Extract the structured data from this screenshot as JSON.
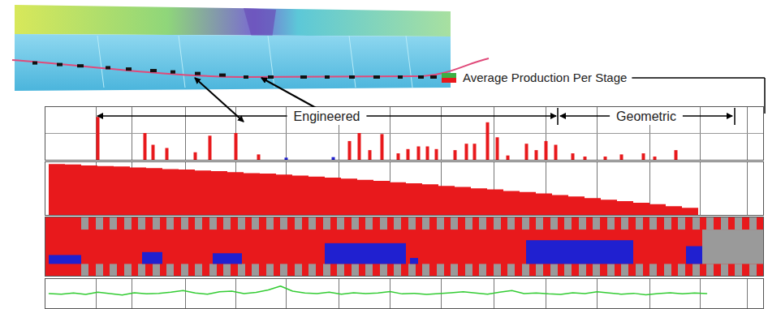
{
  "chart_data": [
    {
      "type": "bar",
      "x": [
        120,
        178,
        188,
        205,
        240,
        258,
        290,
        318,
        352,
        410,
        430,
        442,
        455,
        470,
        490,
        502,
        515,
        526,
        537,
        560,
        574,
        584,
        600,
        612,
        625,
        648,
        660,
        672,
        684,
        705,
        720,
        745,
        765,
        792,
        806,
        832
      ],
      "series": [
        {
          "name": "Average Production Per Stage",
          "values": [
            80,
            50,
            28,
            22,
            14,
            45,
            50,
            10,
            4,
            5,
            35,
            50,
            18,
            48,
            12,
            20,
            25,
            25,
            20,
            18,
            30,
            30,
            70,
            42,
            8,
            30,
            18,
            35,
            28,
            12,
            6,
            6,
            10,
            12,
            6,
            18
          ],
          "colors": [
            "#e8191c",
            "#e8191c",
            "#e8191c",
            "#e8191c",
            "#e8191c",
            "#e8191c",
            "#e8191c",
            "#e8191c",
            "#2020d0",
            "#2020d0",
            "#e8191c",
            "#e8191c",
            "#e8191c",
            "#e8191c",
            "#e8191c",
            "#e8191c",
            "#e8191c",
            "#e8191c",
            "#e8191c",
            "#e8191c",
            "#e8191c",
            "#e8191c",
            "#e8191c",
            "#e8191c",
            "#e8191c",
            "#e8191c",
            "#e8191c",
            "#e8191c",
            "#e8191c",
            "#e8191c",
            "#e8191c",
            "#e8191c",
            "#e8191c",
            "#e8191c",
            "#e8191c",
            "#e8191c"
          ]
        }
      ],
      "xlim": [
        55,
        940
      ],
      "xticks": [
        118,
        162,
        228,
        290,
        352,
        417,
        480,
        543,
        608,
        672,
        735,
        800,
        862,
        920
      ],
      "ylim": [
        0,
        100
      ],
      "yticks": [
        50
      ],
      "grid": true,
      "tick_labels": false,
      "legend": "top-right",
      "annotations": [
        {
          "text": "Engineered",
          "x1": 120,
          "x2": 685
        },
        {
          "text": "Geometric",
          "x1": 690,
          "x2": 902
        }
      ],
      "dividers": [
        687,
        905
      ]
    },
    {
      "type": "area",
      "x": [
        60,
        80,
        100,
        120,
        140,
        160,
        180,
        200,
        220,
        240,
        260,
        280,
        300,
        320,
        340,
        360,
        380,
        400,
        420,
        440,
        460,
        480,
        500,
        520,
        540,
        560,
        580,
        600,
        620,
        640,
        660,
        680,
        700,
        720,
        740,
        760,
        780,
        800,
        820,
        840,
        860
      ],
      "values": [
        100,
        99,
        97,
        96,
        95,
        93,
        92,
        90,
        89,
        87,
        86,
        84,
        82,
        81,
        79,
        77,
        75,
        73,
        71,
        69,
        67,
        64,
        62,
        60,
        57,
        55,
        52,
        50,
        47,
        45,
        42,
        39,
        36,
        33,
        30,
        27,
        24,
        21,
        17,
        14,
        10
      ],
      "color": "#e8191c",
      "xlim": [
        55,
        940
      ],
      "xticks": [
        118,
        162,
        228,
        290,
        352,
        417,
        480,
        543,
        608,
        672,
        735,
        800,
        862,
        920
      ],
      "ylim": [
        0,
        105
      ],
      "yticks": [],
      "grid": true,
      "tick_labels": false
    },
    {
      "type": "stage_log",
      "band": [
        55,
        940
      ],
      "band_color": "#e8191c",
      "stages": [
        [
          100,
          109
        ],
        [
          118,
          127
        ],
        [
          135,
          144
        ],
        [
          153,
          162
        ],
        [
          170,
          179
        ],
        [
          188,
          197
        ],
        [
          205,
          214
        ],
        [
          223,
          232
        ],
        [
          240,
          249
        ],
        [
          258,
          267
        ],
        [
          275,
          284
        ],
        [
          293,
          302
        ],
        [
          310,
          319
        ],
        [
          328,
          337
        ],
        [
          345,
          354
        ],
        [
          363,
          372
        ],
        [
          380,
          389
        ],
        [
          398,
          407
        ],
        [
          415,
          424
        ],
        [
          433,
          442
        ],
        [
          450,
          459
        ],
        [
          468,
          477
        ],
        [
          485,
          494
        ],
        [
          503,
          512
        ],
        [
          520,
          529
        ],
        [
          538,
          547
        ],
        [
          555,
          564
        ],
        [
          573,
          582
        ],
        [
          590,
          599
        ],
        [
          608,
          617
        ],
        [
          625,
          634
        ],
        [
          643,
          652
        ],
        [
          660,
          669
        ],
        [
          678,
          687
        ],
        [
          695,
          704
        ],
        [
          713,
          722
        ],
        [
          730,
          739
        ],
        [
          748,
          757
        ],
        [
          765,
          774
        ],
        [
          783,
          792
        ],
        [
          800,
          809
        ],
        [
          818,
          827
        ],
        [
          835,
          844
        ],
        [
          853,
          862
        ],
        [
          870,
          879
        ],
        [
          888,
          897
        ],
        [
          905,
          914
        ],
        [
          923,
          932
        ]
      ],
      "stage_rows": [
        [
          0,
          20
        ],
        [
          78,
          100
        ]
      ],
      "stage_color": "#9a9a9a",
      "end_zone": [
        865,
        940
      ],
      "blue_zones": [
        {
          "x1": 60,
          "x2": 100,
          "value": 35
        },
        {
          "x1": 175,
          "x2": 200,
          "value": 40
        },
        {
          "x1": 262,
          "x2": 298,
          "value": 38
        },
        {
          "x1": 400,
          "x2": 500,
          "value": 55
        },
        {
          "x1": 505,
          "x2": 515,
          "value": 30
        },
        {
          "x1": 648,
          "x2": 780,
          "value": 60
        },
        {
          "x1": 845,
          "x2": 865,
          "value": 50
        }
      ],
      "blue_color": "#2020d0",
      "xlim": [
        55,
        940
      ],
      "xticks": [
        118,
        162,
        228,
        290,
        352,
        417,
        480,
        543,
        608,
        672,
        735,
        800,
        862,
        920
      ],
      "ylim": [
        0,
        100
      ],
      "yticks": [],
      "grid": true,
      "tick_labels": false
    },
    {
      "type": "line",
      "x": [
        60,
        75,
        90,
        105,
        120,
        135,
        150,
        165,
        180,
        195,
        210,
        225,
        240,
        255,
        270,
        285,
        300,
        315,
        330,
        345,
        360,
        375,
        390,
        405,
        420,
        435,
        450,
        465,
        480,
        495,
        510,
        525,
        540,
        555,
        570,
        585,
        600,
        615,
        630,
        645,
        660,
        675,
        690,
        705,
        720,
        735,
        750,
        765,
        780,
        795,
        810,
        825,
        840,
        855,
        870
      ],
      "values": [
        50,
        48,
        52,
        47,
        55,
        50,
        45,
        53,
        49,
        51,
        55,
        60,
        52,
        48,
        56,
        58,
        50,
        54,
        62,
        75,
        58,
        52,
        50,
        55,
        48,
        53,
        50,
        52,
        57,
        49,
        51,
        47,
        50,
        53,
        56,
        52,
        48,
        55,
        60,
        50,
        52,
        49,
        47,
        53,
        50,
        56,
        52,
        48,
        51,
        46,
        50,
        53,
        49,
        52,
        50
      ],
      "color": "#33cc33",
      "xlim": [
        55,
        940
      ],
      "xticks": [
        118,
        162,
        228,
        290,
        352,
        417,
        480,
        543,
        608,
        672,
        735,
        800,
        862,
        920
      ],
      "ylim": [
        0,
        100
      ],
      "yticks": [],
      "grid": true,
      "tick_labels": false
    }
  ]
}
